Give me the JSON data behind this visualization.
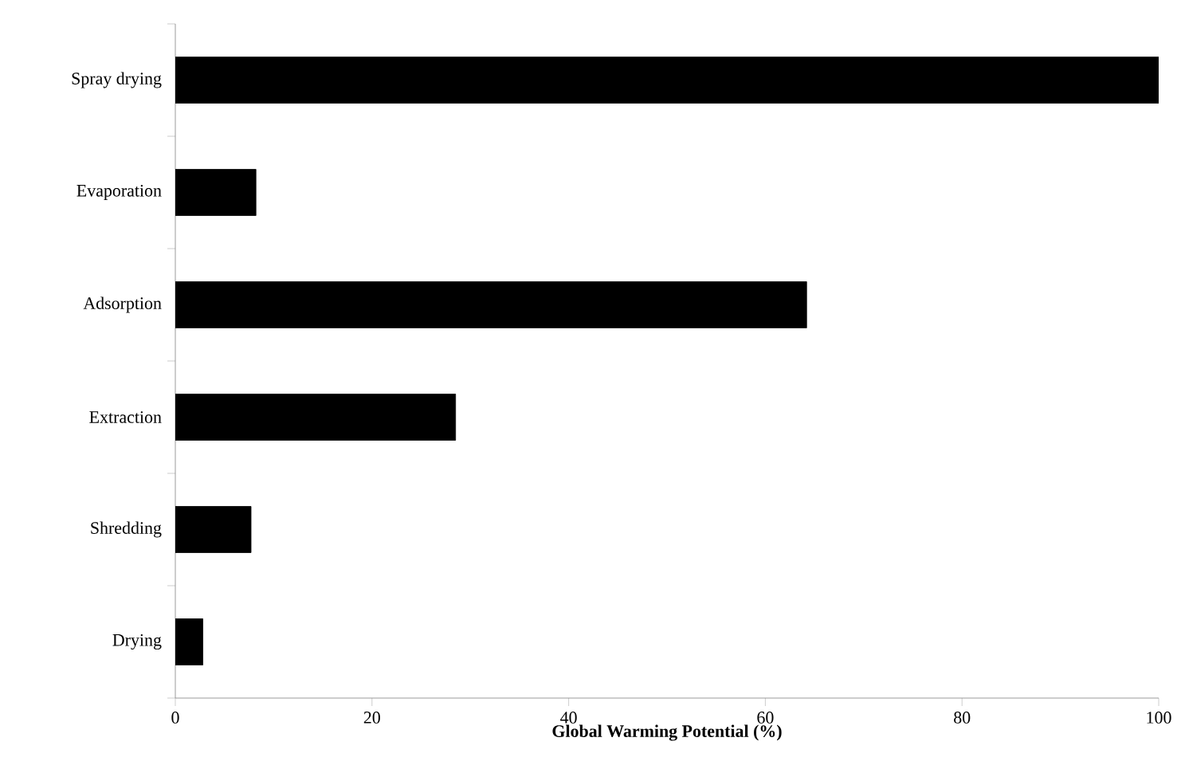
{
  "chart_data": {
    "type": "bar",
    "orientation": "horizontal",
    "xlabel": "Global Warming Potential (%)",
    "categories": [
      "Spray drying",
      "Evaporation",
      "Adsorption",
      "Extraction",
      "Shredding",
      "Drying"
    ],
    "values": [
      100,
      8.2,
      64.2,
      28.5,
      7.7,
      2.8
    ],
    "color": "#000000",
    "xlim": [
      0,
      100
    ],
    "xticks": [
      0,
      20,
      40,
      60,
      80,
      100
    ],
    "grid": false
  }
}
